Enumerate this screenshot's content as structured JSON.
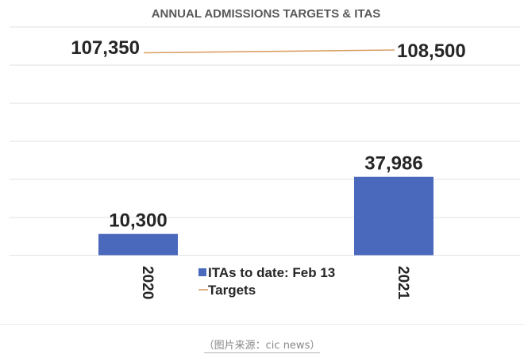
{
  "caption": "（图片来源：cic news）",
  "chart_data": {
    "type": "bar",
    "title": "ANNUAL ADMISSIONS TARGETS & ITAS",
    "categories": [
      "2020",
      "2021"
    ],
    "series": [
      {
        "name": "ITAs to date: Feb 13",
        "kind": "bar",
        "color": "#4a69bd",
        "values": [
          10300,
          37986
        ],
        "value_labels": [
          "10,300",
          "37,986"
        ]
      },
      {
        "name": "Targets",
        "kind": "line",
        "color": "#d9a066",
        "values": [
          107350,
          108500
        ],
        "value_labels": [
          "107,350",
          "108,500"
        ]
      }
    ],
    "grid": true,
    "legend_position": "bottom-center"
  }
}
